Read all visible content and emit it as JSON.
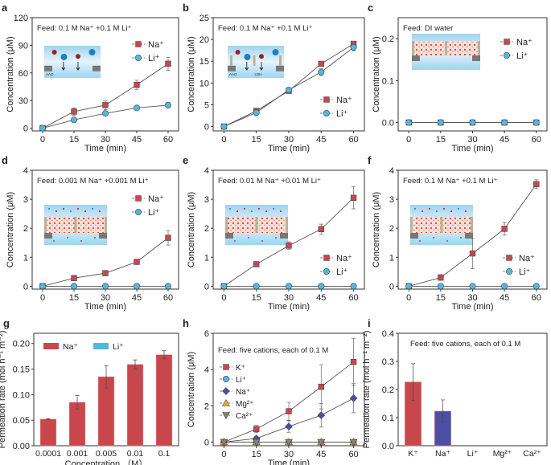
{
  "colors": {
    "na": "#c8474d",
    "li": "#52b8e0",
    "k": "#c8474d",
    "na_h": "#4b4ea6",
    "mg": "#f0a830",
    "ca": "#8a8270",
    "line": "#555555"
  },
  "chart_data": [
    {
      "id": "a",
      "type": "line",
      "panel_label": "a",
      "feed": "Feed: 0.1 M Na⁺ +0.1 M Li⁺",
      "xlabel": "Time (min)",
      "ylabel": "Concentration (μM)",
      "x": [
        0,
        15,
        30,
        45,
        60
      ],
      "xlim": [
        -5,
        65
      ],
      "ylim": [
        -3,
        120
      ],
      "yticks": [
        0,
        30,
        60,
        90,
        120
      ],
      "yticklabels": [
        "0",
        "30",
        "60",
        "90",
        "120"
      ],
      "inset": {
        "style": "simple",
        "labels": [
          "AAO"
        ]
      },
      "legend": "top-right",
      "series": [
        {
          "name": "Na⁺",
          "marker": "square",
          "color": "#c8474d",
          "values": [
            0,
            18,
            25,
            47,
            70
          ],
          "err": [
            0,
            4,
            5,
            5,
            7
          ]
        },
        {
          "name": "Li⁺",
          "marker": "circle",
          "color": "#52b8e0",
          "values": [
            0,
            9,
            16,
            22,
            25
          ],
          "err": [
            0,
            1,
            1,
            1,
            3
          ]
        }
      ]
    },
    {
      "id": "b",
      "type": "line",
      "panel_label": "b",
      "feed": "Feed: 0.1 M Na⁺ +0.1 M Li⁺",
      "xlabel": "Time (min)",
      "ylabel": "Concentration (μM)",
      "x": [
        0,
        15,
        30,
        45,
        60
      ],
      "xlim": [
        -5,
        65
      ],
      "ylim": [
        -1,
        25
      ],
      "yticks": [
        0,
        5,
        10,
        15,
        20,
        25
      ],
      "yticklabels": [
        "0",
        "5",
        "10",
        "15",
        "20",
        "25"
      ],
      "inset": {
        "style": "ldh",
        "labels": [
          "AAO",
          "LDH"
        ]
      },
      "legend": "bottom-right",
      "series": [
        {
          "name": "Na⁺",
          "marker": "square",
          "color": "#c8474d",
          "values": [
            0,
            3.6,
            8.2,
            14.4,
            19
          ],
          "err": [
            0,
            0.6,
            0.5,
            0.4,
            0.4
          ]
        },
        {
          "name": "Li⁺",
          "marker": "circle",
          "color": "#52b8e0",
          "values": [
            0,
            3.2,
            8.4,
            12.5,
            18.2
          ],
          "err": [
            0,
            0.7,
            0.5,
            0.8,
            0.8
          ]
        }
      ]
    },
    {
      "id": "c",
      "type": "line",
      "panel_label": "c",
      "feed": "Feed: DI water",
      "xlabel": "Time (min)",
      "ylabel": "Concentration (μM)",
      "x": [
        0,
        15,
        30,
        45,
        60
      ],
      "xlim": [
        -5,
        65
      ],
      "ylim": [
        -0.02,
        0.25
      ],
      "yticks": [
        0,
        0.1,
        0.2
      ],
      "yticklabels": [
        "0.0",
        "0.1",
        "0.2"
      ],
      "inset": {
        "style": "membrane",
        "labels": []
      },
      "legend": "top-right",
      "series": [
        {
          "name": "Na⁺",
          "marker": "square",
          "color": "#c8474d",
          "values": [
            0,
            0,
            0,
            0,
            0
          ],
          "err": [
            0,
            0,
            0,
            0,
            0
          ]
        },
        {
          "name": "Li⁺",
          "marker": "circle",
          "color": "#52b8e0",
          "values": [
            0,
            0,
            0,
            0,
            0
          ],
          "err": [
            0,
            0,
            0,
            0,
            0
          ]
        }
      ]
    },
    {
      "id": "d",
      "type": "line",
      "panel_label": "d",
      "feed": "Feed: 0.001 M Na⁺ +0.001 M Li⁺",
      "xlabel": "Time (min)",
      "ylabel": "Concentration (μM)",
      "x": [
        0,
        15,
        30,
        45,
        60
      ],
      "xlim": [
        -5,
        65
      ],
      "ylim": [
        -0.1,
        4
      ],
      "yticks": [
        0,
        1,
        2,
        3,
        4
      ],
      "yticklabels": [
        "0",
        "1",
        "2",
        "3",
        "4"
      ],
      "inset": {
        "style": "membrane2",
        "labels": []
      },
      "legend": "top-right",
      "series": [
        {
          "name": "Na⁺",
          "marker": "square",
          "color": "#c8474d",
          "values": [
            0,
            0.28,
            0.45,
            0.84,
            1.67
          ],
          "err": [
            0,
            0.05,
            0.04,
            0.04,
            0.25
          ]
        },
        {
          "name": "Li⁺",
          "marker": "circle",
          "color": "#52b8e0",
          "values": [
            0,
            0,
            0,
            0,
            0
          ],
          "err": [
            0,
            0,
            0,
            0,
            0
          ]
        }
      ]
    },
    {
      "id": "e",
      "type": "line",
      "panel_label": "e",
      "feed": "Feed: 0.01 M Na⁺ +0.01 M Li⁺",
      "xlabel": "Time (min)",
      "ylabel": "Concentration (μM)",
      "x": [
        0,
        15,
        30,
        45,
        60
      ],
      "xlim": [
        -5,
        65
      ],
      "ylim": [
        -0.1,
        4
      ],
      "yticks": [
        0,
        1,
        2,
        3,
        4
      ],
      "yticklabels": [
        "0",
        "1",
        "2",
        "3",
        "4"
      ],
      "inset": {
        "style": "membrane2",
        "labels": []
      },
      "legend": "bottom-right",
      "series": [
        {
          "name": "Na⁺",
          "marker": "square",
          "color": "#c8474d",
          "values": [
            0,
            0.76,
            1.4,
            1.97,
            3.05
          ],
          "err": [
            0,
            0.03,
            0.13,
            0.17,
            0.38
          ]
        },
        {
          "name": "Li⁺",
          "marker": "circle",
          "color": "#52b8e0",
          "values": [
            0,
            0,
            0,
            0,
            0
          ],
          "err": [
            0,
            0,
            0,
            0,
            0
          ]
        }
      ]
    },
    {
      "id": "f",
      "type": "line",
      "panel_label": "f",
      "feed": "Feed: 0.1 M Na⁺ +0.1 M Li⁺",
      "xlabel": "Time (min)",
      "ylabel": "Concentration (μM)",
      "x": [
        0,
        15,
        30,
        45,
        60
      ],
      "xlim": [
        -5,
        65
      ],
      "ylim": [
        -0.1,
        4
      ],
      "yticks": [
        0,
        1,
        2,
        3,
        4
      ],
      "yticklabels": [
        "0",
        "1",
        "2",
        "3",
        "4"
      ],
      "inset": {
        "style": "membrane2",
        "labels": []
      },
      "legend": "bottom-right",
      "series": [
        {
          "name": "Na⁺",
          "marker": "square",
          "color": "#c8474d",
          "values": [
            0,
            0.3,
            1.13,
            1.98,
            3.52
          ],
          "err": [
            0,
            0.1,
            0.52,
            0.22,
            0.15
          ]
        },
        {
          "name": "Li⁺",
          "marker": "circle",
          "color": "#52b8e0",
          "values": [
            0,
            0,
            0,
            0,
            0
          ],
          "err": [
            0,
            0,
            0,
            0,
            0
          ]
        }
      ]
    },
    {
      "id": "g",
      "type": "bar",
      "panel_label": "g",
      "feed": "",
      "xlabel": "Concentration （M）",
      "ylabel": "Permeation rate (mol h⁻¹ m⁻²)",
      "categories": [
        "0.0001",
        "0.001",
        "0.005",
        "0.01",
        "0.1"
      ],
      "ylim": [
        0,
        0.22
      ],
      "yticks": [
        0,
        0.05,
        0.1,
        0.15,
        0.2
      ],
      "yticklabels": [
        "0.00",
        "0.05",
        "0.10",
        "0.15",
        "0.20"
      ],
      "legend": "top-left",
      "legend_entries": [
        {
          "name": "Na⁺",
          "color": "#c8474d"
        },
        {
          "name": "Li⁺",
          "color": "#52b8e0"
        }
      ],
      "series": [
        {
          "name": "Na⁺",
          "color": "#c8474d",
          "values": [
            0.052,
            0.085,
            0.135,
            0.159,
            0.178
          ],
          "err": [
            0.001,
            0.013,
            0.022,
            0.009,
            0.008
          ]
        }
      ]
    },
    {
      "id": "h",
      "type": "line",
      "panel_label": "h",
      "feed": "Feed: five cations, each of 0.1 M",
      "xlabel": "Time (min)",
      "ylabel": "Concentration (μM)",
      "x": [
        0,
        15,
        30,
        45,
        60
      ],
      "xlim": [
        -5,
        65
      ],
      "ylim": [
        -0.2,
        6
      ],
      "yticks": [
        0,
        2,
        4,
        6
      ],
      "yticklabels": [
        "0",
        "2",
        "4",
        "6"
      ],
      "legend": "left",
      "series": [
        {
          "name": "K⁺",
          "marker": "square",
          "color": "#c8474d",
          "values": [
            0,
            0.72,
            1.7,
            3.05,
            4.42
          ],
          "err": [
            0,
            0.2,
            0.5,
            1.22,
            1.3
          ]
        },
        {
          "name": "Li⁺",
          "marker": "circle",
          "color": "#52b8e0",
          "values": [
            0,
            0,
            0,
            0,
            0
          ],
          "err": [
            0,
            0,
            0,
            0,
            0
          ]
        },
        {
          "name": "Na⁺",
          "marker": "diamond",
          "color": "#4b4ea6",
          "values": [
            0,
            0.2,
            0.86,
            1.48,
            2.42
          ],
          "err": [
            0,
            0.1,
            0.32,
            0.65,
            0.8
          ]
        },
        {
          "name": "Mg²⁺",
          "marker": "triangle",
          "color": "#f0a830",
          "values": [
            0,
            0,
            0,
            0,
            0
          ],
          "err": [
            0,
            0,
            0,
            0,
            0
          ]
        },
        {
          "name": "Ca²⁺",
          "marker": "triangle-down",
          "color": "#8a8270",
          "values": [
            0,
            0,
            0,
            0,
            0
          ],
          "err": [
            0,
            0,
            0,
            0,
            0
          ]
        }
      ]
    },
    {
      "id": "i",
      "type": "bar",
      "panel_label": "i",
      "feed": "Feed: five cations, each of 0.1 M",
      "xlabel": "",
      "ylabel": "Permeation rate (mol h⁻¹ m⁻²)",
      "categories": [
        "K⁺",
        "Na⁺",
        "Li⁺",
        "Mg²⁺",
        "Ca²⁺"
      ],
      "ylim": [
        0,
        0.4
      ],
      "yticks": [
        0,
        0.1,
        0.2,
        0.3,
        0.4
      ],
      "yticklabels": [
        "0.0",
        "0.1",
        "0.2",
        "0.3",
        "0.4"
      ],
      "legend": "none",
      "series": [
        {
          "name": "",
          "colors": [
            "#c8474d",
            "#4b4ea6",
            "#52b8e0",
            "#f0a830",
            "#8a8270"
          ],
          "values": [
            0.227,
            0.123,
            0,
            0,
            0
          ],
          "err": [
            0.065,
            0.04,
            0,
            0,
            0
          ]
        }
      ]
    }
  ]
}
